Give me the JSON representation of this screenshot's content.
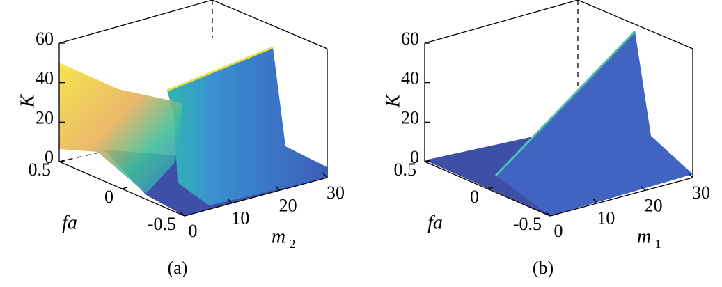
{
  "panels": [
    {
      "caption": "(a)",
      "zlabel": "K",
      "ylabel": "fa",
      "xlabel": {
        "base": "m",
        "sub": "2"
      },
      "zlim": [
        0,
        60
      ],
      "zticks": [
        0,
        20,
        40,
        60
      ],
      "ylim": [
        0.5,
        -0.5
      ],
      "yticks": [
        0.5,
        0,
        -0.5
      ],
      "xlim": [
        0,
        30
      ],
      "xticks": [
        0,
        10,
        20,
        30
      ]
    },
    {
      "caption": "(b)",
      "zlabel": "K",
      "ylabel": "fa",
      "xlabel": {
        "base": "m",
        "sub": "1"
      },
      "zlim": [
        0,
        60
      ],
      "zticks": [
        0,
        20,
        40,
        60
      ],
      "ylim": [
        0.5,
        -0.5
      ],
      "yticks": [
        0.5,
        0,
        -0.5
      ],
      "xlim": [
        0,
        30
      ],
      "xticks": [
        0,
        10,
        20,
        30
      ]
    }
  ]
}
